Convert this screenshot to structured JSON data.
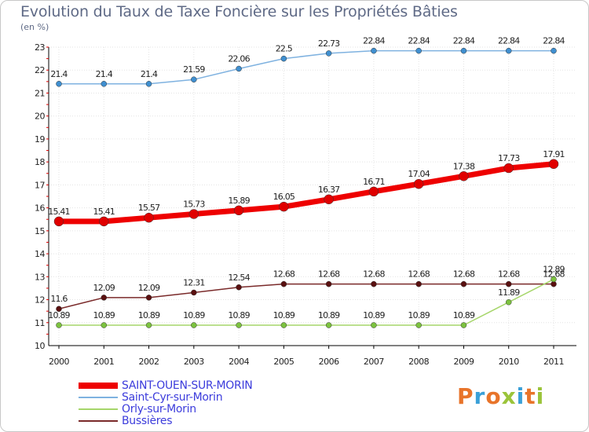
{
  "header": {
    "title": "Evolution du Taux de Taxe Foncière sur les Propriétés Bâties",
    "unit": "(en %)"
  },
  "logo": {
    "text": "Proxiti",
    "colors": [
      "#e8742a",
      "#3aa0d8",
      "#e8742a",
      "#9bc43a",
      "#3aa0d8",
      "#e8742a",
      "#9bc43a"
    ]
  },
  "chart_data": {
    "type": "line",
    "title": "Evolution du Taux de Taxe Foncière sur les Propriétés Bâties",
    "ylabel": "(en %)",
    "xlabel": "",
    "x": [
      "2000",
      "2001",
      "2002",
      "2003",
      "2004",
      "2005",
      "2006",
      "2007",
      "2008",
      "2009",
      "2010",
      "2011"
    ],
    "ylim": [
      10,
      23
    ],
    "yticks": [
      "10",
      "11",
      "12",
      "13",
      "14",
      "15",
      "16",
      "17",
      "18",
      "19",
      "20",
      "21",
      "22",
      "23"
    ],
    "grid": true,
    "legend_position": "bottom-left",
    "series": [
      {
        "name": "Saint-Cyr-sur-Morin",
        "color": "#7fb2e0",
        "marker_color": "#3f8fd0",
        "values": [
          21.4,
          21.4,
          21.4,
          21.59,
          22.06,
          22.5,
          22.73,
          22.84,
          22.84,
          22.84,
          22.84,
          22.84
        ],
        "labels": [
          "21.4",
          "21.4",
          "21.4",
          "21.59",
          "22.06",
          "22.5",
          "22.73",
          "22.84",
          "22.84",
          "22.84",
          "22.84",
          "22.84"
        ]
      },
      {
        "name": "SAINT-OUEN-SUR-MORIN",
        "color": "#ee0000",
        "marker_color": "#e00000",
        "values": [
          15.41,
          15.41,
          15.57,
          15.73,
          15.89,
          16.05,
          16.37,
          16.71,
          17.04,
          17.38,
          17.73,
          17.91
        ],
        "labels": [
          "15.41",
          "15.41",
          "15.57",
          "15.73",
          "15.89",
          "16.05",
          "16.37",
          "16.71",
          "17.04",
          "17.38",
          "17.73",
          "17.91"
        ]
      },
      {
        "name": "Bussières",
        "color": "#7a2a2a",
        "marker_color": "#5a1010",
        "values": [
          11.6,
          12.09,
          12.09,
          12.31,
          12.54,
          12.68,
          12.68,
          12.68,
          12.68,
          12.68,
          12.68,
          12.68
        ],
        "labels": [
          "11.6",
          "12.09",
          "12.09",
          "12.31",
          "12.54",
          "12.68",
          "12.68",
          "12.68",
          "12.68",
          "12.68",
          "12.68",
          "12.68"
        ]
      },
      {
        "name": "Orly-sur-Morin",
        "color": "#a6d66a",
        "marker_color": "#7cc23f",
        "values": [
          10.89,
          10.89,
          10.89,
          10.89,
          10.89,
          10.89,
          10.89,
          10.89,
          10.89,
          10.89,
          11.89,
          12.89
        ],
        "labels": [
          "10.89",
          "10.89",
          "10.89",
          "10.89",
          "10.89",
          "10.89",
          "10.89",
          "10.89",
          "10.89",
          "10.89",
          "11.89",
          "12.89"
        ]
      }
    ],
    "legend": [
      {
        "name": "SAINT-OUEN-SUR-MORIN",
        "color": "#ee0000"
      },
      {
        "name": "Saint-Cyr-sur-Morin",
        "color": "#7fb2e0"
      },
      {
        "name": "Orly-sur-Morin",
        "color": "#a6d66a"
      },
      {
        "name": "Bussières",
        "color": "#7a2a2a"
      }
    ]
  }
}
